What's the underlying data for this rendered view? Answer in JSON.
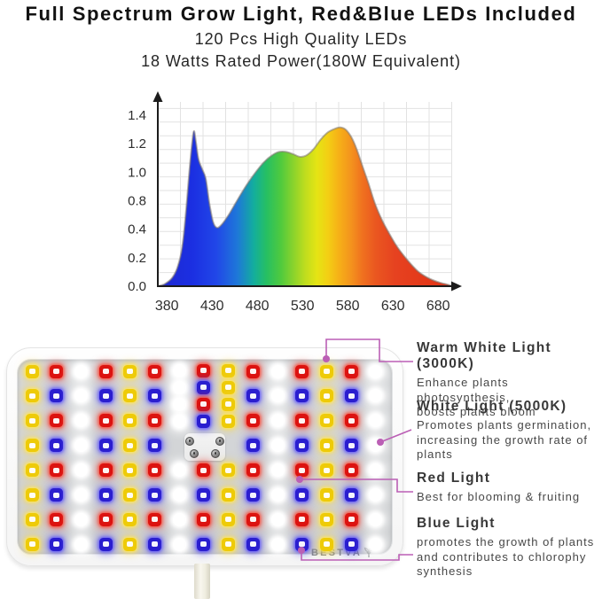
{
  "header": {
    "title": "Full Spectrum Grow Light, Red&Blue LEDs Included",
    "subtitle1": "120 Pcs High Quality LEDs",
    "subtitle2": "18 Watts Rated Power(180W Equivalent)"
  },
  "chart_data": {
    "type": "area",
    "title": "",
    "xlabel": "",
    "ylabel": "",
    "x_range": [
      370,
      696
    ],
    "y_range": [
      0,
      1.4
    ],
    "grid": true,
    "x_ticks": [
      380,
      430,
      480,
      530,
      580,
      630,
      680
    ],
    "y_tick_labels": [
      "1.4",
      "1.2",
      "1.0",
      "0.8",
      "0.4",
      "0.2",
      "0.0"
    ],
    "points": [
      [
        370,
        0
      ],
      [
        378,
        0.02
      ],
      [
        386,
        0.07
      ],
      [
        392,
        0.16
      ],
      [
        397,
        0.32
      ],
      [
        401,
        0.6
      ],
      [
        405,
        0.95
      ],
      [
        408,
        1.18
      ],
      [
        410,
        1.27
      ],
      [
        412,
        1.19
      ],
      [
        415,
        1.04
      ],
      [
        419,
        0.96
      ],
      [
        423,
        0.88
      ],
      [
        427,
        0.68
      ],
      [
        431,
        0.53
      ],
      [
        435,
        0.48
      ],
      [
        440,
        0.5
      ],
      [
        448,
        0.58
      ],
      [
        456,
        0.68
      ],
      [
        464,
        0.78
      ],
      [
        472,
        0.87
      ],
      [
        480,
        0.95
      ],
      [
        488,
        1.02
      ],
      [
        496,
        1.07
      ],
      [
        504,
        1.1
      ],
      [
        512,
        1.1
      ],
      [
        520,
        1.08
      ],
      [
        527,
        1.06
      ],
      [
        534,
        1.07
      ],
      [
        542,
        1.12
      ],
      [
        550,
        1.2
      ],
      [
        558,
        1.26
      ],
      [
        566,
        1.29
      ],
      [
        572,
        1.3
      ],
      [
        578,
        1.28
      ],
      [
        584,
        1.22
      ],
      [
        590,
        1.12
      ],
      [
        596,
        0.99
      ],
      [
        603,
        0.84
      ],
      [
        610,
        0.68
      ],
      [
        618,
        0.54
      ],
      [
        626,
        0.43
      ],
      [
        634,
        0.33
      ],
      [
        642,
        0.25
      ],
      [
        650,
        0.18
      ],
      [
        658,
        0.12
      ],
      [
        666,
        0.08
      ],
      [
        674,
        0.05
      ],
      [
        682,
        0.03
      ],
      [
        692,
        0.01
      ],
      [
        696,
        0
      ]
    ],
    "gradient_stops": [
      {
        "nm": 370,
        "color": "#1f28d0"
      },
      {
        "nm": 408,
        "color": "#1b2fe2"
      },
      {
        "nm": 435,
        "color": "#2147e8"
      },
      {
        "nm": 458,
        "color": "#1e78d8"
      },
      {
        "nm": 476,
        "color": "#13ad9e"
      },
      {
        "nm": 490,
        "color": "#26bf63"
      },
      {
        "nm": 506,
        "color": "#4fca3e"
      },
      {
        "nm": 520,
        "color": "#8ad32c"
      },
      {
        "nm": 533,
        "color": "#bfdd1e"
      },
      {
        "nm": 546,
        "color": "#e5e414"
      },
      {
        "nm": 558,
        "color": "#f3cf14"
      },
      {
        "nm": 570,
        "color": "#f6b117"
      },
      {
        "nm": 583,
        "color": "#f4951d"
      },
      {
        "nm": 596,
        "color": "#f0721f"
      },
      {
        "nm": 611,
        "color": "#ea5720"
      },
      {
        "nm": 632,
        "color": "#e64220"
      },
      {
        "nm": 696,
        "color": "#e23114"
      }
    ]
  },
  "panel": {
    "logo_text": "BESTVA",
    "logo_icon": "sprout-icon",
    "board_color": "#d2d4d6",
    "led_rows": [
      "YRWRYRWRYRWRYRW",
      "YBWBYBWBYBWBYBW",
      "YRWRYRWRYRWRYRW",
      "YBWBYBWBYBWBYBW",
      "YRWRYRWRYRWRYRW",
      "YBWBYBWBYBWBYBW",
      "YRWRYRWRYRWRYRW",
      "YBWBYBWBYBWBYBW"
    ],
    "center_cluster": [
      "WWWW",
      "RBRB",
      "YYYY"
    ],
    "led_palette": {
      "Y": {
        "name": "warm-white-led",
        "core": "#eecb08"
      },
      "W": {
        "name": "white-led",
        "core": "#ffffff"
      },
      "R": {
        "name": "red-led",
        "core": "#dc1310"
      },
      "B": {
        "name": "blue-led",
        "core": "#2a1ecf"
      }
    }
  },
  "callouts": [
    {
      "heading": "Warm White Light (3000K)",
      "body": "Enhance plants photosynthesis,\nboosts plants bloom"
    },
    {
      "heading": "White Light (5000K)",
      "body": "Promotes plants germination,\nincreasing the growth rate of\nplants"
    },
    {
      "heading": "Red Light",
      "body": "Best for blooming & fruiting"
    },
    {
      "heading": "Blue Light",
      "body": "promotes the growth of plants\nand contributes to chlorophy\nsynthesis"
    }
  ],
  "accent_line_color": "#bb5fb5"
}
